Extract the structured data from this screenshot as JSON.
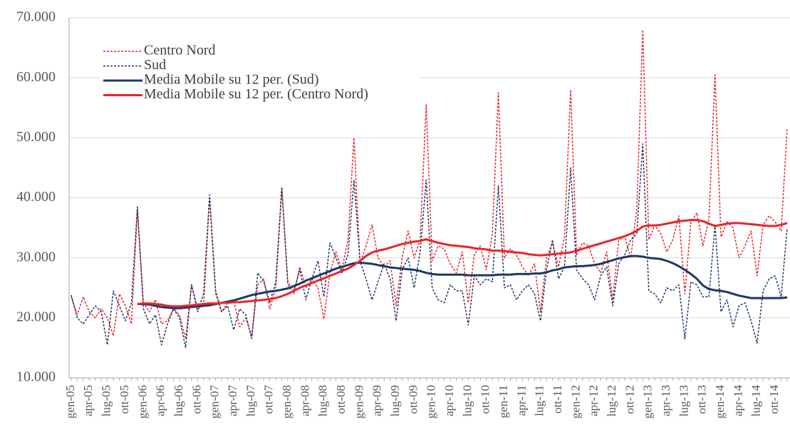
{
  "chart_data": {
    "type": "line",
    "categories": [
      "gen-05",
      null,
      null,
      "apr-05",
      null,
      null,
      "lug-05",
      null,
      null,
      "ott-05",
      null,
      null,
      "gen-06",
      null,
      null,
      "apr-06",
      null,
      null,
      "lug-06",
      null,
      null,
      "ott-06",
      null,
      null,
      "gen-07",
      null,
      null,
      "apr-07",
      null,
      null,
      "lug-07",
      null,
      null,
      "ott-07",
      null,
      null,
      "gen-08",
      null,
      null,
      "apr-08",
      null,
      null,
      "lug-08",
      null,
      null,
      "ott-08",
      null,
      null,
      "gen-09",
      null,
      null,
      "apr-09",
      null,
      null,
      "lug-09",
      null,
      null,
      "ott-09",
      null,
      null,
      "gen-10",
      null,
      null,
      "apr-10",
      null,
      null,
      "lug-10",
      null,
      null,
      "ott-10",
      null,
      null,
      "gen-11",
      null,
      null,
      "apr-11",
      null,
      null,
      "lug-11",
      null,
      null,
      "ott-11",
      null,
      null,
      "gen-12",
      null,
      null,
      "apr-12",
      null,
      null,
      "lug-12",
      null,
      null,
      "ott-12",
      null,
      null,
      "gen-13",
      null,
      null,
      "apr-13",
      null,
      null,
      "lug-13",
      null,
      null,
      "ott-13",
      null,
      null,
      "gen-14",
      null,
      null,
      "apr-14",
      null,
      null,
      "lug-14",
      null,
      null,
      "ott-14",
      null,
      null
    ],
    "series": [
      {
        "name": "Centro Nord",
        "color": "#e8262c",
        "style": "dotted",
        "values": [
          23500,
          20500,
          23500,
          21000,
          20000,
          21500,
          20000,
          17000,
          24000,
          22000,
          19000,
          38000,
          22500,
          21000,
          23000,
          19000,
          19500,
          21500,
          20500,
          16500,
          25500,
          21500,
          22000,
          40000,
          24000,
          21000,
          22500,
          23000,
          18500,
          20000,
          17000,
          25500,
          26500,
          21500,
          25000,
          41500,
          25500,
          24000,
          28500,
          25000,
          26500,
          25000,
          19800,
          27500,
          31000,
          28000,
          33000,
          50000,
          29000,
          32000,
          35500,
          30000,
          28500,
          29500,
          22000,
          30000,
          34500,
          30000,
          33000,
          55500,
          29500,
          32000,
          31500,
          29000,
          27500,
          31000,
          22500,
          30500,
          32000,
          28000,
          34000,
          57500,
          30000,
          31500,
          30500,
          28500,
          27000,
          29000,
          21000,
          30000,
          32500,
          28500,
          33500,
          58000,
          30500,
          32500,
          32000,
          29000,
          27500,
          31000,
          23000,
          33000,
          33500,
          30000,
          38000,
          68000,
          33000,
          35500,
          34000,
          31000,
          33000,
          37000,
          24000,
          36000,
          37500,
          32000,
          36500,
          60500,
          33500,
          36000,
          35000,
          30000,
          32000,
          34500,
          27000,
          35500,
          37000,
          36000,
          34500,
          51500
        ]
      },
      {
        "name": "Sud",
        "color": "#1f3864",
        "style": "dotted",
        "values": [
          23800,
          20000,
          19000,
          20500,
          22000,
          21000,
          15500,
          24500,
          22000,
          19500,
          22500,
          38500,
          21500,
          19000,
          20500,
          15500,
          19000,
          21500,
          20000,
          15000,
          25500,
          21000,
          24000,
          40500,
          24500,
          21000,
          22000,
          18000,
          21500,
          20500,
          16500,
          27500,
          26000,
          22500,
          26000,
          41800,
          26000,
          24500,
          28000,
          23000,
          26500,
          29500,
          23500,
          32500,
          30000,
          27500,
          30500,
          43000,
          29500,
          26500,
          23000,
          26000,
          29000,
          26500,
          19500,
          28000,
          30000,
          25000,
          31000,
          43000,
          25000,
          23000,
          22500,
          25500,
          24500,
          24500,
          18800,
          27000,
          25500,
          26500,
          26000,
          42000,
          25000,
          25500,
          23000,
          24500,
          25500,
          24000,
          19500,
          28000,
          33000,
          26500,
          28500,
          45000,
          28000,
          26500,
          25500,
          23000,
          27000,
          28500,
          22000,
          29000,
          30500,
          33000,
          34000,
          49000,
          24500,
          24000,
          22500,
          25000,
          24500,
          25500,
          16500,
          26000,
          25500,
          23500,
          23500,
          35500,
          21000,
          23000,
          18500,
          22000,
          22500,
          19500,
          15800,
          24500,
          26500,
          27000,
          23500,
          35000
        ]
      },
      {
        "name": "Media Mobile su 12 per. (Sud)",
        "color": "#1f3864",
        "style": "solid",
        "values": [
          null,
          null,
          null,
          null,
          null,
          null,
          null,
          null,
          null,
          null,
          null,
          22300,
          22300,
          22200,
          22000,
          21800,
          21700,
          21600,
          21600,
          21700,
          21800,
          21900,
          22000,
          22100,
          22300,
          22500,
          22700,
          22900,
          23200,
          23500,
          23800,
          24000,
          24200,
          24400,
          24500,
          24700,
          24900,
          25300,
          25700,
          26200,
          26600,
          27000,
          27400,
          27800,
          28200,
          28500,
          28800,
          29100,
          29200,
          29100,
          29000,
          28800,
          28600,
          28400,
          28300,
          28200,
          28100,
          28000,
          27800,
          27500,
          27300,
          27200,
          27200,
          27200,
          27200,
          27200,
          27100,
          27100,
          27100,
          27100,
          27100,
          27200,
          27200,
          27200,
          27300,
          27300,
          27300,
          27400,
          27400,
          27600,
          27900,
          28100,
          28400,
          28500,
          28600,
          28600,
          28700,
          28800,
          29000,
          29300,
          29600,
          29900,
          30100,
          30300,
          30300,
          30200,
          30000,
          29900,
          29800,
          29500,
          29100,
          28600,
          28000,
          27300,
          26500,
          25400,
          24800,
          24600,
          24500,
          24300,
          24000,
          23700,
          23500,
          23300,
          23300,
          23300,
          23300,
          23300,
          23300,
          23400
        ]
      },
      {
        "name": "Media Mobile su 12 per. (Centro Nord)",
        "color": "#e8262c",
        "style": "solid",
        "values": [
          null,
          null,
          null,
          null,
          null,
          null,
          null,
          null,
          null,
          null,
          null,
          22300,
          22400,
          22400,
          22300,
          22200,
          22000,
          21900,
          21900,
          22000,
          22100,
          22200,
          22300,
          22400,
          22400,
          22500,
          22500,
          22600,
          22600,
          22700,
          22800,
          22900,
          23000,
          23100,
          23300,
          23600,
          24000,
          24500,
          25000,
          25400,
          25800,
          26200,
          26600,
          27000,
          27400,
          27800,
          28200,
          28800,
          29500,
          30300,
          30900,
          31200,
          31400,
          31700,
          32000,
          32300,
          32500,
          32700,
          32800,
          33100,
          32800,
          32500,
          32300,
          32100,
          32000,
          31900,
          31800,
          31600,
          31500,
          31400,
          31200,
          31200,
          31100,
          31000,
          30900,
          30800,
          30600,
          30500,
          30400,
          30500,
          30600,
          30700,
          30800,
          30900,
          31200,
          31500,
          31800,
          32100,
          32400,
          32700,
          33000,
          33300,
          33600,
          34000,
          34500,
          35200,
          35400,
          35400,
          35500,
          35700,
          35900,
          36100,
          36200,
          36300,
          36300,
          36100,
          35700,
          35300,
          35500,
          35700,
          35800,
          35800,
          35700,
          35600,
          35500,
          35400,
          35300,
          35300,
          35500,
          35800
        ]
      }
    ],
    "ylim": [
      10000,
      70000
    ],
    "yticks": [
      {
        "value": 10000,
        "label": "10.000"
      },
      {
        "value": 20000,
        "label": "20.000"
      },
      {
        "value": 30000,
        "label": "30.000"
      },
      {
        "value": 40000,
        "label": "40.000"
      },
      {
        "value": 50000,
        "label": "50.000"
      },
      {
        "value": 60000,
        "label": "60.000"
      },
      {
        "value": 70000,
        "label": "70.000"
      }
    ],
    "grid": true,
    "legend": "top-left"
  }
}
